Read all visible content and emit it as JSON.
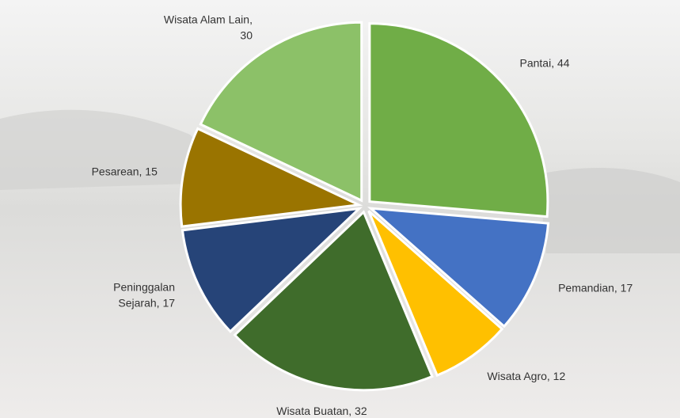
{
  "chart_data": {
    "type": "pie",
    "values": [
      44,
      17,
      12,
      32,
      17,
      15,
      30
    ],
    "value_labels": [
      "Pantai, 44",
      "Pemandian, 17",
      "Wisata Agro, 12",
      "Wisata Buatan, 32",
      "Peninggalan\nSejarah, 17",
      "Pesarean, 15",
      "Wisata Alam Lain,\n30"
    ],
    "colors": [
      "#70ad47",
      "#4472c4",
      "#ffc000",
      "#3f6c2b",
      "#264478",
      "#9a7400",
      "#8cc168"
    ]
  }
}
